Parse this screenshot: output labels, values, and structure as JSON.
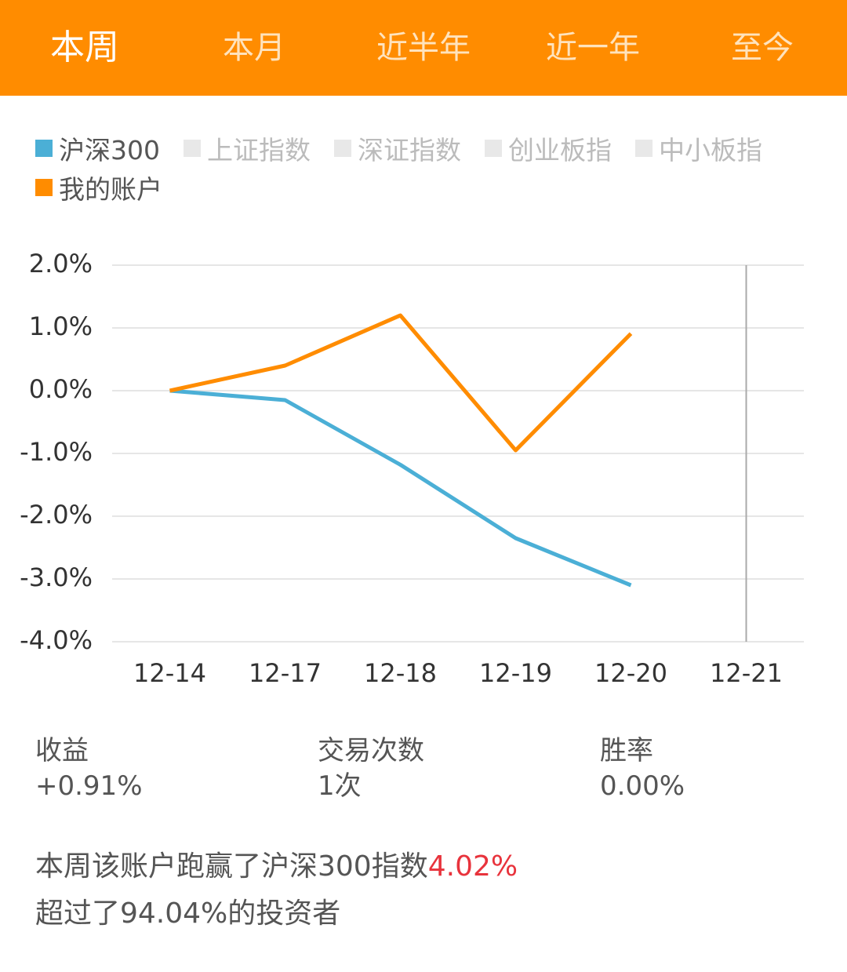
{
  "tabs": [
    "本周",
    "本月",
    "近半年",
    "近一年",
    "至今"
  ],
  "active_tab": 0,
  "chart_data": {
    "type": "line",
    "categories": [
      "12-14",
      "12-17",
      "12-18",
      "12-19",
      "12-20",
      "12-21"
    ],
    "series": [
      {
        "name": "沪深300",
        "color": "#4bafd6",
        "values": [
          0,
          -0.15,
          -1.18,
          -2.35,
          -3.1,
          null
        ]
      },
      {
        "name": "上证指数",
        "color": "#e8e8e8",
        "hidden": true,
        "values": [
          null,
          null,
          null,
          null,
          null,
          null
        ]
      },
      {
        "name": "深证指数",
        "color": "#e8e8e8",
        "hidden": true,
        "values": [
          null,
          null,
          null,
          null,
          null,
          null
        ]
      },
      {
        "name": "创业板指",
        "color": "#e8e8e8",
        "hidden": true,
        "values": [
          null,
          null,
          null,
          null,
          null,
          null
        ]
      },
      {
        "name": "中小板指",
        "color": "#e8e8e8",
        "hidden": true,
        "values": [
          null,
          null,
          null,
          null,
          null,
          null
        ]
      },
      {
        "name": "我的账户",
        "color": "#ff8c00",
        "values": [
          0,
          0.4,
          1.2,
          -0.95,
          0.91,
          null
        ]
      }
    ],
    "ylim": [
      -4,
      2
    ],
    "yticks": [
      {
        "value": 2,
        "label": "2.0%"
      },
      {
        "value": 1,
        "label": "1.0%"
      },
      {
        "value": 0,
        "label": "0.0%"
      },
      {
        "value": -1,
        "label": "-1.0%"
      },
      {
        "value": -2,
        "label": "-2.0%"
      },
      {
        "value": -3,
        "label": "-3.0%"
      },
      {
        "value": -4,
        "label": "-4.0%"
      }
    ],
    "grid": true
  },
  "stats": [
    {
      "label": "收益",
      "value": "+0.91%"
    },
    {
      "label": "交易次数",
      "value": "1次"
    },
    {
      "label": "胜率",
      "value": "0.00%"
    }
  ],
  "summary": {
    "line1": "本周该账户跑赢了沪深300指数",
    "highlight": "4.02%",
    "line2": "超过了94.04%的投资者"
  }
}
